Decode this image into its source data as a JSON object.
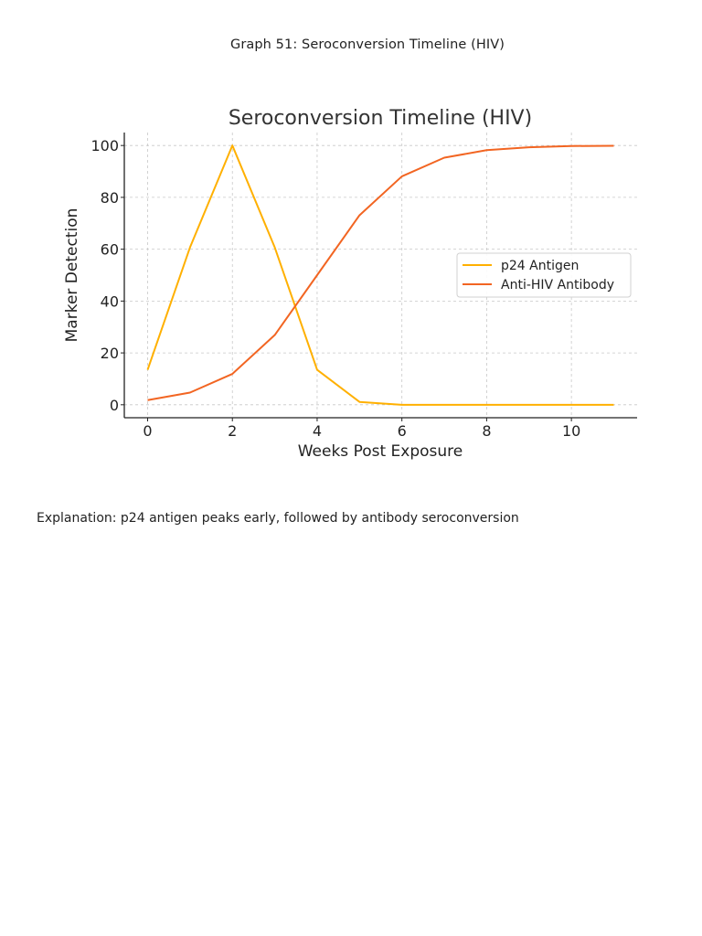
{
  "page": {
    "caption": "Graph 51: Seroconversion Timeline (HIV)",
    "explanation": "Explanation: p24 antigen peaks early, followed by antibody seroconversion"
  },
  "chart_data": {
    "type": "line",
    "title": "Seroconversion Timeline (HIV)",
    "xlabel": "Weeks Post Exposure",
    "ylabel": "Marker Detection",
    "xlim": [
      -0.55,
      11.55
    ],
    "ylim": [
      -5,
      105
    ],
    "xticks": [
      0,
      2,
      4,
      6,
      8,
      10
    ],
    "yticks": [
      0,
      20,
      40,
      60,
      80,
      100
    ],
    "grid": true,
    "legend_position": "center-right",
    "x": [
      0,
      1,
      2,
      3,
      4,
      5,
      6,
      7,
      8,
      9,
      10,
      11
    ],
    "series": [
      {
        "name": "p24 Antigen",
        "color": "#FFB000",
        "values": [
          13.5,
          60.7,
          100,
          60.7,
          13.5,
          1.1,
          0.0,
          0.0,
          0.0,
          0.0,
          0.0,
          0.0
        ]
      },
      {
        "name": "Anti-HIV Antibody",
        "color": "#F26522",
        "values": [
          1.8,
          4.7,
          11.9,
          26.9,
          50.0,
          73.1,
          88.1,
          95.3,
          98.2,
          99.3,
          99.8,
          99.9
        ]
      }
    ]
  }
}
